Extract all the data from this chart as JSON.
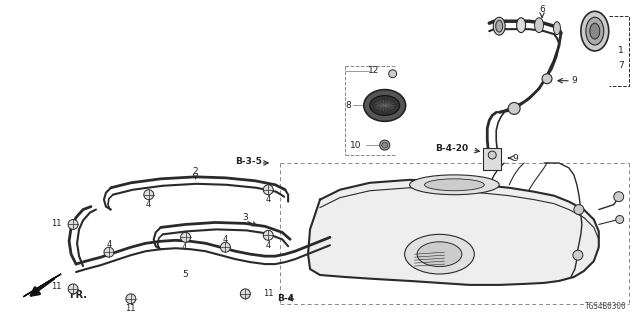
{
  "background_color": "#ffffff",
  "diagram_code": "TGS4B0300",
  "fig_width": 6.4,
  "fig_height": 3.2,
  "dpi": 100,
  "line_color": "#2a2a2a",
  "label_color": "#222222",
  "dash_color": "#888888"
}
